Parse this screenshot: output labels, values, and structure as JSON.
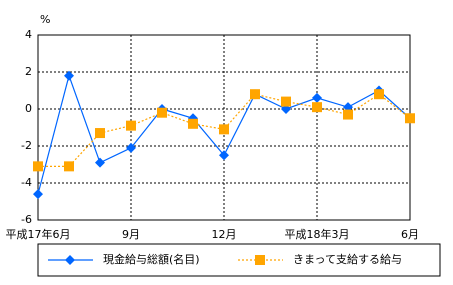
{
  "chart_data": {
    "type": "line",
    "y_label": "%",
    "categories": [
      "平成17年6月",
      null,
      null,
      "9月",
      null,
      null,
      "12月",
      null,
      null,
      "平成18年3月",
      null,
      null,
      "6月"
    ],
    "series": [
      {
        "name": "現金給与総額(名目)",
        "color": "#0066ff",
        "style": "solid",
        "marker": "diamond",
        "values": [
          -4.6,
          1.8,
          -2.9,
          -2.1,
          0.0,
          -0.5,
          -2.5,
          0.8,
          0.0,
          0.6,
          0.1,
          1.0,
          -0.5
        ]
      },
      {
        "name": "きまって支給する給与",
        "color": "#ffa500",
        "style": "dotted",
        "marker": "square",
        "values": [
          -3.1,
          -3.1,
          -1.3,
          -0.9,
          -0.2,
          -0.8,
          -1.1,
          0.8,
          0.4,
          0.1,
          -0.3,
          0.8,
          -0.5
        ]
      }
    ],
    "ylim": [
      -6,
      4
    ],
    "yticks": [
      -6,
      -4,
      -2,
      0,
      2,
      4
    ],
    "grid": true
  }
}
